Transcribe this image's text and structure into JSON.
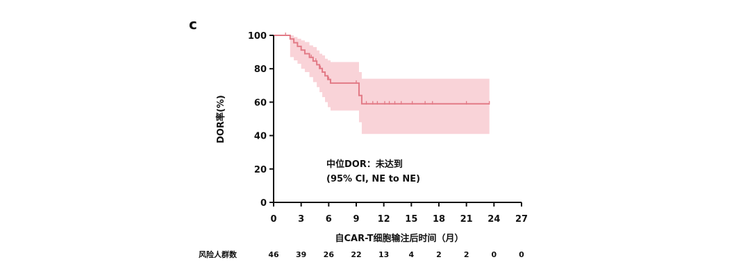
{
  "panel_label": "c",
  "colors": {
    "curve": "#e27a86",
    "band": "#f9d3d8",
    "axis": "#111111"
  },
  "annotation": {
    "line1": "中位DOR：未达到",
    "line2": "(95% CI, NE to NE)"
  },
  "risk_table": {
    "label": "风险人群数",
    "counts": [
      "46",
      "39",
      "26",
      "22",
      "13",
      "4",
      "2",
      "2",
      "0",
      "0"
    ]
  },
  "chart_data": {
    "type": "line",
    "xlabel": "自CAR-T细胞输注后时间（月）",
    "ylabel": "DOR率(%)",
    "xlim": [
      0,
      27
    ],
    "ylim": [
      0,
      100
    ],
    "x_ticks": [
      "0",
      "3",
      "6",
      "9",
      "12",
      "15",
      "18",
      "21",
      "24",
      "27"
    ],
    "y_ticks": [
      "0",
      "20",
      "40",
      "60",
      "80",
      "100"
    ],
    "grid": false,
    "series": [
      {
        "kind": "step",
        "x": [
          0,
          1.8,
          2.2,
          2.6,
          3.0,
          3.4,
          3.9,
          4.3,
          4.7,
          5.0,
          5.3,
          5.6,
          5.9,
          6.2,
          6.5,
          9.3,
          9.6,
          23.5
        ],
        "y": [
          100,
          97.8,
          95.6,
          93.4,
          91.2,
          89.0,
          86.8,
          84.6,
          82.4,
          80.2,
          78.0,
          75.8,
          73.6,
          71.4,
          71.4,
          64.0,
          59.0,
          59.0
        ]
      }
    ],
    "ci_band": {
      "x": [
        0,
        1.8,
        2.2,
        2.6,
        3.0,
        3.4,
        3.9,
        4.3,
        4.7,
        5.0,
        5.3,
        5.6,
        5.9,
        6.2,
        6.5,
        9.3,
        9.6,
        23.5
      ],
      "lower": [
        100,
        87,
        85,
        83,
        80,
        78,
        75,
        72,
        69,
        66,
        63,
        60,
        57,
        55,
        55,
        48,
        41,
        41
      ],
      "upper": [
        100,
        100,
        99,
        98,
        97,
        96,
        94,
        93,
        91,
        89,
        88,
        86,
        85,
        84,
        84,
        78,
        74,
        74
      ]
    },
    "censor_x": [
      1.3,
      4.1,
      4.6,
      5.1,
      6.0,
      9.0,
      10.1,
      10.8,
      11.3,
      12.1,
      12.6,
      13.2,
      13.9,
      15.1,
      16.5,
      17.3,
      21.0,
      23.5
    ]
  }
}
